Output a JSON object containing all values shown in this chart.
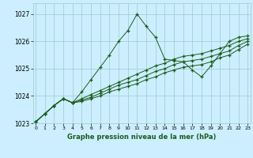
{
  "title": "Graphe pression niveau de la mer (hPa)",
  "bg_color": "#cceeff",
  "grid_color": "#99cccc",
  "line_color": "#1a5c1a",
  "x_min": 0,
  "x_max": 23,
  "y_min": 1023,
  "y_max": 1027.4,
  "series": [
    [
      1023.05,
      1023.35,
      1023.65,
      1023.9,
      1023.75,
      1024.15,
      1024.6,
      1025.05,
      1025.5,
      1026.0,
      1026.4,
      1027.0,
      1026.55,
      1026.15,
      1025.35,
      1025.3,
      1025.25,
      1024.95,
      1024.7,
      1025.1,
      1025.55,
      1026.0,
      1026.15,
      1026.2
    ],
    [
      1023.05,
      1023.35,
      1023.65,
      1023.9,
      1023.75,
      1023.9,
      1024.05,
      1024.2,
      1024.35,
      1024.5,
      1024.65,
      1024.8,
      1024.95,
      1025.1,
      1025.2,
      1025.35,
      1025.45,
      1025.5,
      1025.55,
      1025.65,
      1025.75,
      1025.85,
      1026.0,
      1026.1
    ],
    [
      1023.05,
      1023.35,
      1023.65,
      1023.9,
      1023.75,
      1023.85,
      1023.95,
      1024.1,
      1024.25,
      1024.4,
      1024.5,
      1024.6,
      1024.75,
      1024.9,
      1025.0,
      1025.15,
      1025.25,
      1025.3,
      1025.35,
      1025.45,
      1025.55,
      1025.65,
      1025.85,
      1026.0
    ],
    [
      1023.05,
      1023.35,
      1023.65,
      1023.9,
      1023.75,
      1023.8,
      1023.9,
      1024.0,
      1024.15,
      1024.25,
      1024.35,
      1024.45,
      1024.6,
      1024.7,
      1024.85,
      1024.95,
      1025.05,
      1025.1,
      1025.15,
      1025.25,
      1025.4,
      1025.5,
      1025.7,
      1025.9
    ]
  ],
  "yticks": [
    1023,
    1024,
    1025,
    1026,
    1027
  ],
  "xticks": [
    0,
    1,
    2,
    3,
    4,
    5,
    6,
    7,
    8,
    9,
    10,
    11,
    12,
    13,
    14,
    15,
    16,
    17,
    18,
    19,
    20,
    21,
    22,
    23
  ]
}
